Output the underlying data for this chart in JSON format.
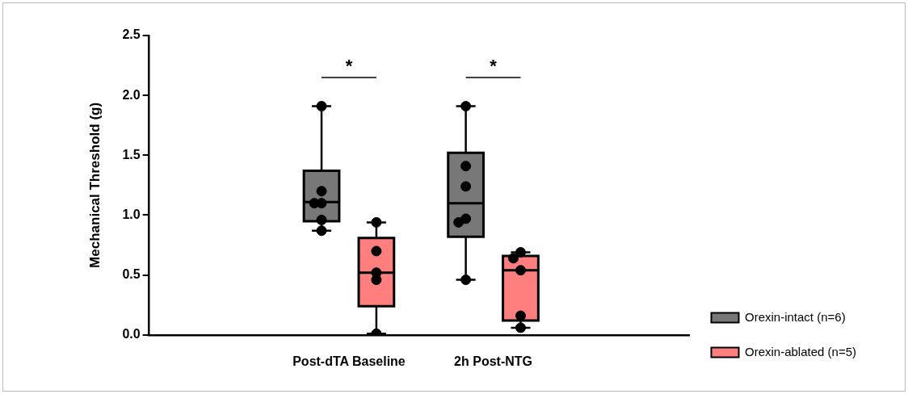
{
  "chart_data": {
    "type": "box",
    "ylabel": "Mechanical Threshold (g)",
    "categories": [
      "Post-dTA Baseline",
      "2h Post-NTG"
    ],
    "ylim": [
      0,
      2.5
    ],
    "yticks": [
      {
        "value": 0,
        "label": "0.0"
      },
      {
        "value": 0.5,
        "label": "0.5"
      },
      {
        "value": 1,
        "label": "1.0"
      },
      {
        "value": 1.5,
        "label": "1.5"
      },
      {
        "value": 2,
        "label": "2.0"
      },
      {
        "value": 2.5,
        "label": "2.5"
      }
    ],
    "grid": false,
    "legend": "right",
    "marker": "circle",
    "series": [
      {
        "name": "Orexin-intact (n=6)",
        "color": "#787878",
        "boxes": [
          {
            "low": 0.87,
            "q1": 0.95,
            "median": 1.11,
            "q3": 1.37,
            "high": 1.91
          },
          {
            "low": 0.46,
            "q1": 0.82,
            "median": 1.1,
            "q3": 1.52,
            "high": 1.91
          }
        ]
      },
      {
        "name": "Orexin-ablated (n=5)",
        "color": "#ff7f7f",
        "boxes": [
          {
            "low": 0.01,
            "q1": 0.24,
            "median": 0.52,
            "q3": 0.81,
            "high": 0.94
          },
          {
            "low": 0.06,
            "q1": 0.12,
            "median": 0.54,
            "q3": 0.66,
            "high": 0.69
          }
        ]
      },
      {
        "type": "scatter",
        "color": "#000000",
        "x": [
          "Post-dTA Baseline",
          "Post-dTA Baseline",
          "Post-dTA Baseline",
          "Post-dTA Baseline",
          "Post-dTA Baseline",
          "Post-dTA Baseline",
          "2h Post-NTG",
          "2h Post-NTG",
          "2h Post-NTG",
          "2h Post-NTG",
          "2h Post-NTG",
          "2h Post-NTG"
        ],
        "values": [
          1.91,
          1.2,
          1.1,
          1.1,
          0.96,
          0.87,
          1.91,
          1.41,
          1.24,
          0.97,
          0.94,
          0.46
        ]
      },
      {
        "type": "scatter",
        "color": "#000000",
        "x": [
          "Post-dTA Baseline",
          "Post-dTA Baseline",
          "Post-dTA Baseline",
          "Post-dTA Baseline",
          "Post-dTA Baseline",
          "2h Post-NTG",
          "2h Post-NTG",
          "2h Post-NTG",
          "2h Post-NTG",
          "2h Post-NTG"
        ],
        "values": [
          0.94,
          0.7,
          0.52,
          0.46,
          0.01,
          0.69,
          0.64,
          0.54,
          0.16,
          0.06
        ]
      }
    ],
    "annotations": [
      "*",
      "*"
    ]
  }
}
